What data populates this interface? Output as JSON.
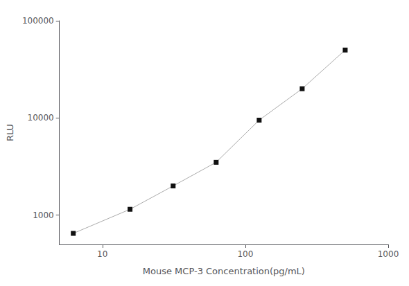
{
  "chart_data": {
    "type": "line",
    "x": [
      6.25,
      15.6,
      31.25,
      62.5,
      125,
      250,
      500
    ],
    "values": [
      650,
      1150,
      2000,
      3500,
      9500,
      20000,
      50000
    ],
    "xlabel": "Mouse MCP-3 Concentration(pg/mL)",
    "ylabel": "RLU",
    "log": true,
    "xlim": [
      5,
      1000
    ],
    "ylim": [
      500,
      100000
    ],
    "xticks": [
      10,
      100,
      1000
    ],
    "yticks": [
      1000,
      10000,
      100000
    ],
    "color": "#aaaaaa",
    "colors": [
      "#111111",
      "#111111",
      "#111111",
      "#111111",
      "#111111",
      "#111111",
      "#111111"
    ],
    "marker": "square",
    "line_style": "solid",
    "grid": false
  }
}
